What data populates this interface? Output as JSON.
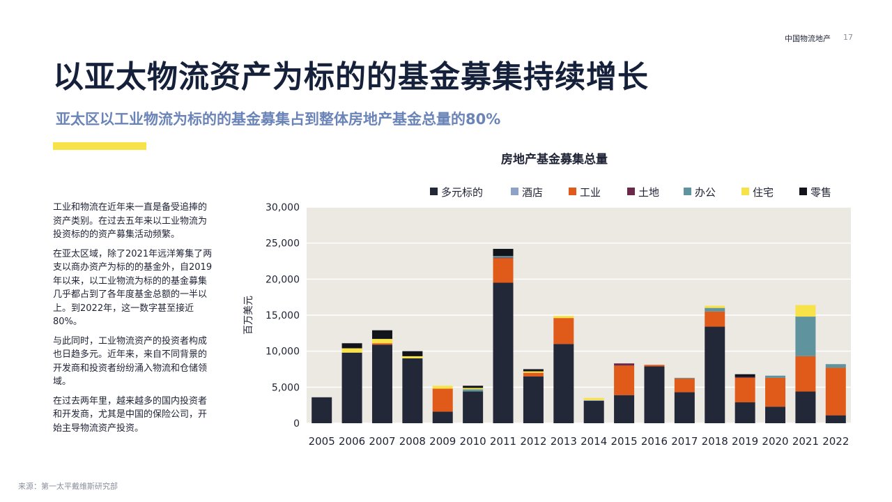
{
  "header": {
    "brand": "中国物流地产",
    "page_number": "17"
  },
  "title": "以亚太物流资产为标的的基金募集持续增长",
  "subtitle": "亚太区以工业物流为标的的基金募集占到整体房地产基金总量的80%",
  "paragraphs": [
    "工业和物流在近年来一直是备受追捧的资产类别。在过去五年来以工业物流为投资标的的资产募集活动频繁。",
    "在亚太区域，除了2021年远洋筹集了两支以商办资产为标的的基金外，自2019年以来，以工业物流为标的的基金募集几乎都占到了各年度基金总额的一半以上。到2022年，这一数字甚至接近80%。",
    "与此同时，工业物流资产的投资者构成也日趋多元。近年来，来自不同背景的开发商和投资者纷纷涌入物流和仓储领域。",
    "在过去两年里，越来越多的国内投资者和开发商，尤其是中国的保险公司，开始主导物流资产投资。"
  ],
  "source": "来源：第一太平戴维斯研究部",
  "colors": {
    "plot_background": "#ece8e2",
    "gridline": "#ffffff",
    "accent_yellow": "#f7e24a"
  },
  "chart_data": {
    "type": "bar",
    "stacked": true,
    "title": "房地产基金募集总量",
    "xlabel": "",
    "ylabel": "百万美元",
    "ylim": [
      0,
      30000
    ],
    "yticks": [
      0,
      5000,
      10000,
      15000,
      20000,
      25000,
      30000
    ],
    "ytick_labels": [
      "0",
      "5,000",
      "10,000",
      "15,000",
      "20,000",
      "25,000",
      "30,000"
    ],
    "grid": true,
    "legend_position": "top",
    "categories": [
      "2005",
      "2006",
      "2007",
      "2008",
      "2009",
      "2010",
      "2011",
      "2012",
      "2013",
      "2014",
      "2015",
      "2016",
      "2017",
      "2018",
      "2019",
      "2020",
      "2021",
      "2022"
    ],
    "series": [
      {
        "name": "多元标的",
        "color": "#232839",
        "values": [
          3600,
          9800,
          10900,
          9000,
          1600,
          4400,
          19500,
          6500,
          11000,
          3100,
          3900,
          7900,
          4300,
          13400,
          2900,
          2300,
          4400,
          1100
        ]
      },
      {
        "name": "酒店",
        "color": "#8ea2c7",
        "values": [
          0,
          0,
          0,
          0,
          0,
          0,
          0,
          0,
          0,
          100,
          0,
          0,
          0,
          0,
          0,
          0,
          0,
          0
        ]
      },
      {
        "name": "工业",
        "color": "#e05a1a",
        "values": [
          0,
          0,
          200,
          0,
          3200,
          0,
          3400,
          500,
          3600,
          0,
          4100,
          200,
          1900,
          2100,
          3400,
          4000,
          4900,
          6600
        ]
      },
      {
        "name": "土地",
        "color": "#6b2848",
        "values": [
          0,
          0,
          0,
          0,
          0,
          0,
          100,
          0,
          0,
          0,
          300,
          0,
          0,
          0,
          100,
          0,
          0,
          0
        ]
      },
      {
        "name": "办公",
        "color": "#5f949e",
        "values": [
          0,
          0,
          0,
          0,
          0,
          300,
          200,
          0,
          0,
          0,
          0,
          0,
          100,
          500,
          0,
          300,
          5500,
          500
        ]
      },
      {
        "name": "住宅",
        "color": "#f7e24a",
        "values": [
          0,
          600,
          600,
          300,
          400,
          200,
          0,
          200,
          300,
          300,
          0,
          0,
          0,
          300,
          0,
          0,
          1600,
          0
        ]
      },
      {
        "name": "零售",
        "color": "#12141c",
        "values": [
          0,
          700,
          1200,
          700,
          0,
          300,
          1000,
          300,
          0,
          0,
          0,
          0,
          0,
          0,
          400,
          0,
          0,
          0
        ]
      }
    ]
  }
}
